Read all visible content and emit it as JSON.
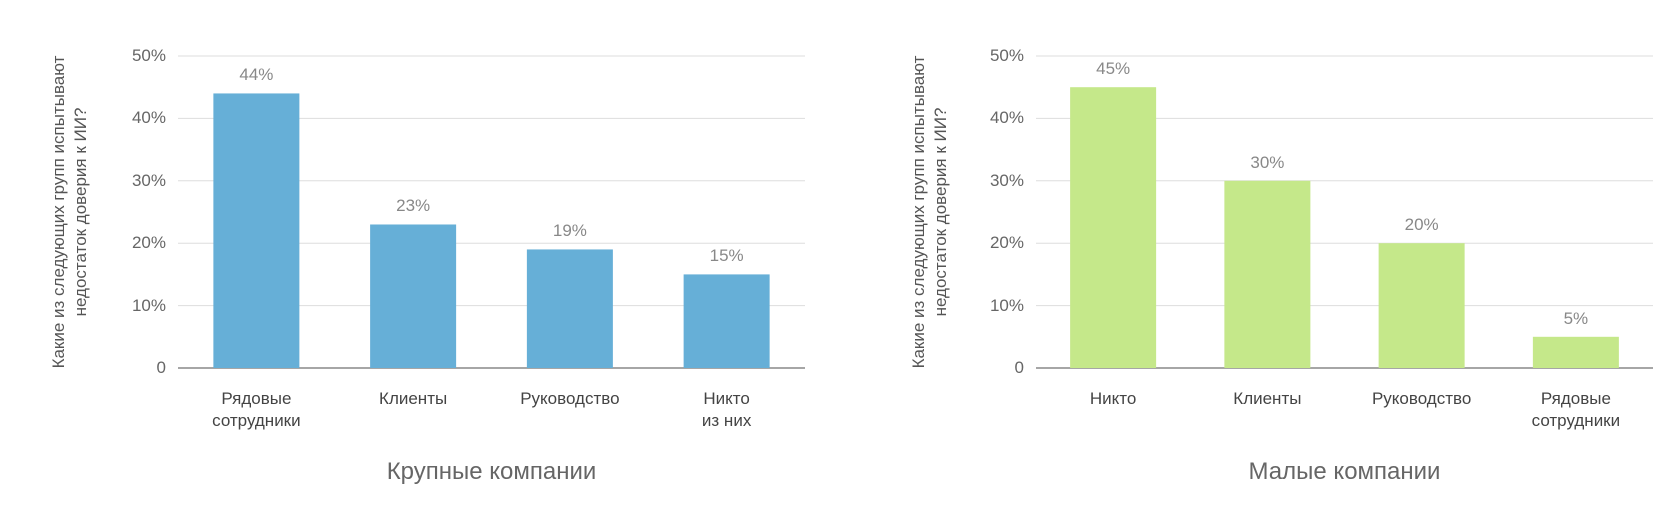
{
  "chart_data": [
    {
      "type": "bar",
      "title": "Крупные компании",
      "y_label": "Какие из следующих групп испытывают\nнедостаток доверия к ИИ?",
      "categories": [
        "Рядовые\nсотрудники",
        "Клиенты",
        "Руководство",
        "Никто\nиз них"
      ],
      "values": [
        44,
        23,
        19,
        15
      ],
      "value_labels": [
        "44%",
        "23%",
        "19%",
        "15%"
      ],
      "color": "#66afd7",
      "ylim": [
        0,
        50
      ],
      "yticks": [
        0,
        {
          "value": 10,
          "label": "10%"
        },
        {
          "value": 20,
          "label": "20%"
        },
        {
          "value": 30,
          "label": "30%"
        },
        {
          "value": 40,
          "label": "40%"
        },
        {
          "value": 50,
          "label": "50%"
        }
      ],
      "grid": true
    },
    {
      "type": "bar",
      "title": "Малые компании",
      "y_label": "Какие из следующих групп испытывают\nнедостаток доверия к ИИ?",
      "categories": [
        "Никто",
        "Клиенты",
        "Руководство",
        "Рядовые\nсотрудники"
      ],
      "values": [
        45,
        30,
        20,
        5
      ],
      "value_labels": [
        "45%",
        "30%",
        "20%",
        "5%"
      ],
      "color": "#c5e88a",
      "ylim": [
        0,
        50
      ],
      "yticks": [
        0,
        {
          "value": 10,
          "label": "10%"
        },
        {
          "value": 20,
          "label": "20%"
        },
        {
          "value": 30,
          "label": "30%"
        },
        {
          "value": 40,
          "label": "40%"
        },
        {
          "value": 50,
          "label": "50%"
        }
      ],
      "grid": true
    }
  ]
}
